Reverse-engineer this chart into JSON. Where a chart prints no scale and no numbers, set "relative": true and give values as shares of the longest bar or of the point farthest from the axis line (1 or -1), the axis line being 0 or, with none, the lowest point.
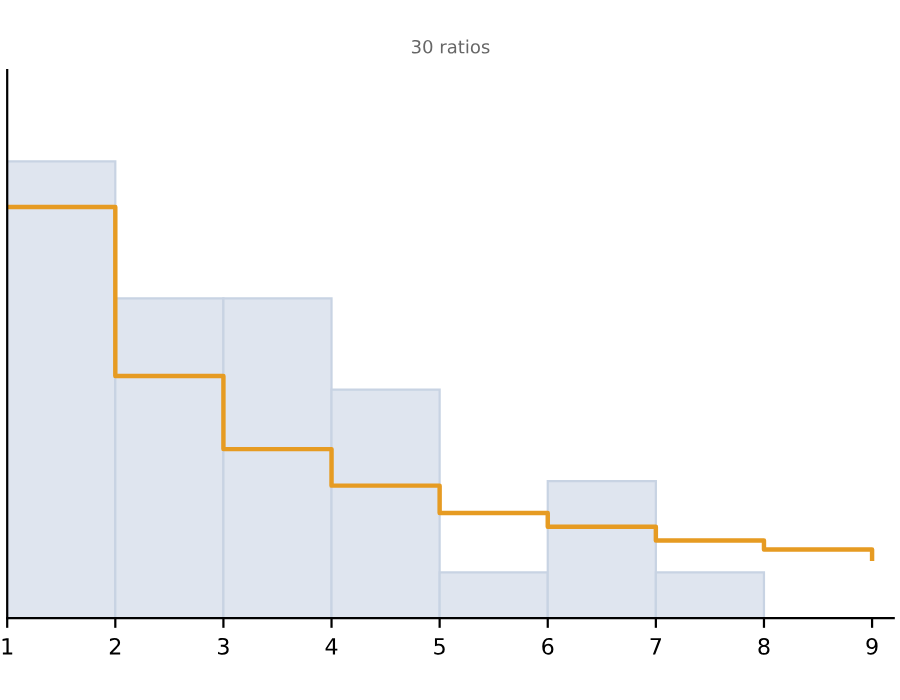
{
  "chart_data": {
    "type": "histogram",
    "title": "30 ratios",
    "relative": true,
    "tick_labels": "x",
    "grid": false,
    "xlim": [
      1,
      9.2
    ],
    "xticks": [
      1,
      2,
      3,
      4,
      5,
      6,
      7,
      8,
      9
    ],
    "series": [
      {
        "color": "#dfe5ef",
        "bins": [
          1,
          2,
          3,
          4,
          5,
          6,
          7,
          8
        ],
        "values": [
          1,
          0.7,
          0.7,
          0.5,
          0.1,
          0.3,
          0.1
        ]
      },
      {
        "type": "step",
        "color": "#e69b22",
        "x": [
          1,
          2,
          3,
          4,
          5,
          6,
          7,
          8,
          9
        ],
        "values": [
          0.9,
          0.53,
          0.37,
          0.29,
          0.23,
          0.2,
          0.17,
          0.15,
          0.13
        ]
      }
    ]
  }
}
